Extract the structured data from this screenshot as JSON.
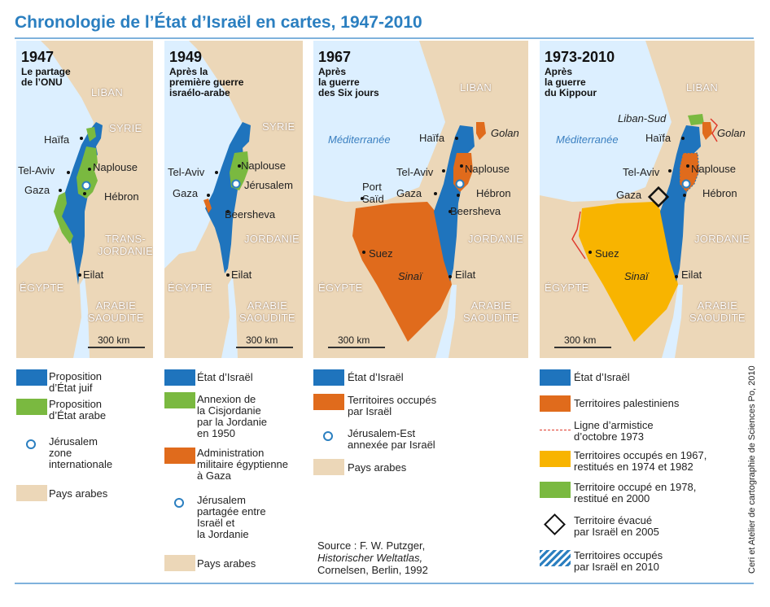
{
  "title": "Chronologie de l’État d’Israël en cartes, 1947-2010",
  "colors": {
    "sea": "#dcefff",
    "land": "#ecd7b8",
    "israel": "#1f74bd",
    "arab_state": "#7ab940",
    "egypt_admin": "#e06b1c",
    "occupied_1967": "#f8b400",
    "armistice": "#e03a2c",
    "accent": "#2b7fc0"
  },
  "panels": [
    {
      "year": "1947",
      "subtitle": "Le partage\nde l’ONU",
      "labels": [
        "Haïfa",
        "Tel-Aviv",
        "Gaza",
        "Naplouse",
        "Hébron",
        "Eilat"
      ],
      "countries": [
        "LIBAN",
        "SYRIE",
        "TRANS-\nJORDANIE",
        "ÉGYPTE",
        "ARABIE\nSAOUDITE"
      ],
      "scale": "300 km"
    },
    {
      "year": "1949",
      "subtitle": "Après la\npremière guerre\nisraélo-arabe",
      "labels": [
        "Tel-Aviv",
        "Gaza",
        "Naplouse",
        "Jérusalem",
        "Beersheva",
        "Eilat"
      ],
      "countries": [
        "SYRIE",
        "JORDANIE",
        "ÉGYPTE",
        "ARABIE\nSAOUDITE"
      ],
      "scale": "300 km"
    },
    {
      "year": "1967",
      "subtitle": "Après\nla guerre\ndes Six jours",
      "sea": "Méditerranée",
      "labels": [
        "Haïfa",
        "Tel-Aviv",
        "Port\nSaïd",
        "Gaza",
        "Naplouse",
        "Hébron",
        "Beersheva",
        "Suez",
        "Eilat"
      ],
      "italic_labels": [
        "Golan",
        "Sinaï"
      ],
      "countries": [
        "LIBAN",
        "JORDANIE",
        "ÉGYPTE",
        "ARABIE\nSAOUDITE"
      ],
      "scale": "300 km"
    },
    {
      "year": "1973-2010",
      "subtitle": "Après\nla guerre\ndu Kippour",
      "sea": "Méditerranée",
      "labels": [
        "Haïfa",
        "Tel-Aviv",
        "Gaza",
        "Naplouse",
        "Hébron",
        "Suez",
        "Eilat"
      ],
      "italic_labels": [
        "Liban-Sud",
        "Golan",
        "Sinaï"
      ],
      "countries": [
        "LIBAN",
        "JORDANIE",
        "ÉGYPTE",
        "ARABIE\nSAOUDITE"
      ],
      "scale": "300 km"
    }
  ],
  "legends": [
    [
      {
        "type": "israel",
        "text": "Proposition\nd’État juif"
      },
      {
        "type": "arab_state",
        "text": "Proposition\nd’État arabe"
      },
      {
        "type": "ring",
        "text": "Jérusalem\nzone\ninternationale"
      },
      {
        "type": "land",
        "text": "Pays arabes"
      }
    ],
    [
      {
        "type": "israel",
        "text": "État d’Israël"
      },
      {
        "type": "arab_state",
        "text": "Annexion de\nla Cisjordanie\npar la Jordanie\nen 1950"
      },
      {
        "type": "egypt_admin",
        "text": "Administration\nmilitaire égyptienne\nà Gaza"
      },
      {
        "type": "ring",
        "text": "Jérusalem\npartagée entre\nIsraël et\nla Jordanie"
      },
      {
        "type": "land",
        "text": "Pays arabes"
      }
    ],
    [
      {
        "type": "israel",
        "text": "État d’Israël"
      },
      {
        "type": "egypt_admin",
        "text": "Territoires occupés\npar Israël"
      },
      {
        "type": "ring",
        "text": "Jérusalem-Est\nannexée par Israël"
      },
      {
        "type": "land",
        "text": "Pays arabes"
      }
    ],
    [
      {
        "type": "israel",
        "text": "État d’Israël"
      },
      {
        "type": "egypt_admin",
        "text": "Territoires palestiniens"
      },
      {
        "type": "line",
        "text": "Ligne d’armistice\nd’octobre 1973"
      },
      {
        "type": "occupied_1967",
        "text": "Territoires occupés en 1967,\nrestitués en 1974 et 1982"
      },
      {
        "type": "arab_state",
        "text": "Territoire occupé en 1978,\nrestitué en 2000"
      },
      {
        "type": "diamond",
        "text": "Territoire évacué\npar Israël en 2005"
      },
      {
        "type": "hatch",
        "text": "Territoires occupés\npar Israël en 2010"
      }
    ]
  ],
  "source": {
    "prefix": "Source : F. W. Putzger,",
    "book": "Historischer Weltatlas,",
    "publisher": "Cornelsen, Berlin, 1992"
  },
  "credit": "Ceri et Atelier de cartographie de Sciences Po, 2010"
}
